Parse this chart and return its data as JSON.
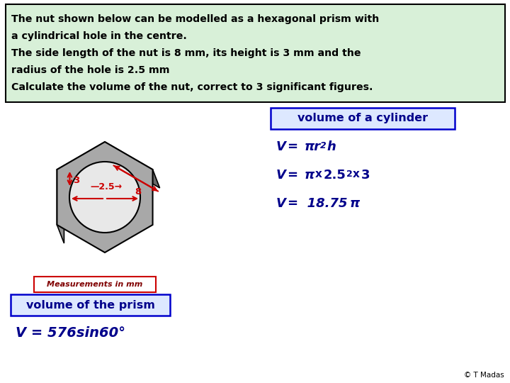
{
  "bg_color": "#ffffff",
  "top_box_bg": "#d8f0d8",
  "top_box_text_line1": "The nut shown below can be modelled as a hexagonal prism with",
  "top_box_text_line2": "a cylindrical hole in the centre.",
  "top_box_text_line3": "The side length of the nut is 8 mm, its height is 3 mm and the",
  "top_box_text_line4": "radius of the hole is 2.5 mm",
  "top_box_text_line5": "Calculate the volume of the nut, correct to 3 significant figures.",
  "cylinder_box_text": "volume of a cylinder",
  "prism_box_text": "volume of the prism",
  "prism_eq": "V = 576sin60°",
  "measurements_text": "Measurements in mm",
  "copyright": "© T Madas",
  "label_25": "—2.5→",
  "label_3": "3",
  "label_8": "8",
  "hex_color_top": "#a8a8a8",
  "hex_color_side_dark": "#686868",
  "hex_color_side_mid": "#909090",
  "circle_color": "#e8e8e8",
  "arrow_color": "#cc0000",
  "text_dark_blue": "#00008b",
  "box_border_blue": "#0000cc",
  "box_fill_blue": "#dde8ff"
}
